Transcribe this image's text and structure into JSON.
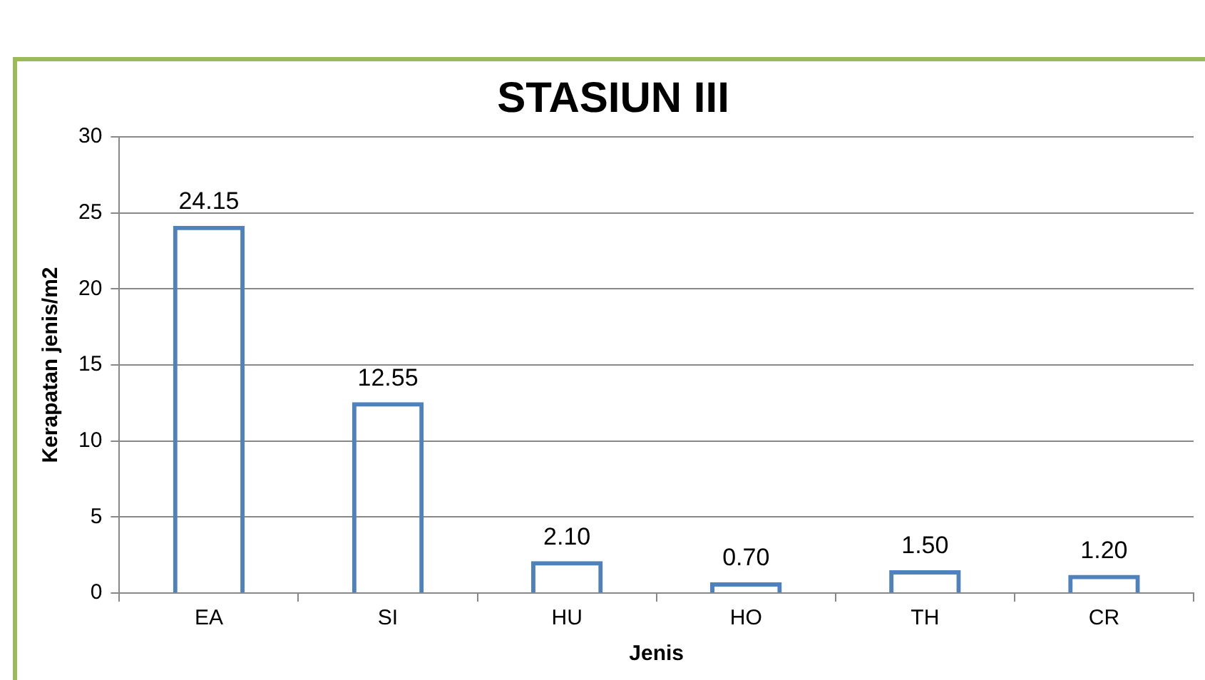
{
  "chart_data": {
    "type": "bar",
    "title": "STASIUN III",
    "xlabel": "Jenis",
    "ylabel": "Kerapatan jenis/m2",
    "categories": [
      "EA",
      "SI",
      "HU",
      "HO",
      "TH",
      "CR"
    ],
    "values": [
      24.15,
      12.55,
      2.1,
      0.7,
      1.5,
      1.2
    ],
    "value_labels": [
      "24.15",
      "12.55",
      "2.10",
      "0.70",
      "1.50",
      "1.20"
    ],
    "color": "#4f81bd",
    "ylim": [
      0,
      30
    ],
    "yticks": [
      0,
      5,
      10,
      15,
      20,
      25,
      30
    ],
    "grid": "y",
    "legend": false
  }
}
